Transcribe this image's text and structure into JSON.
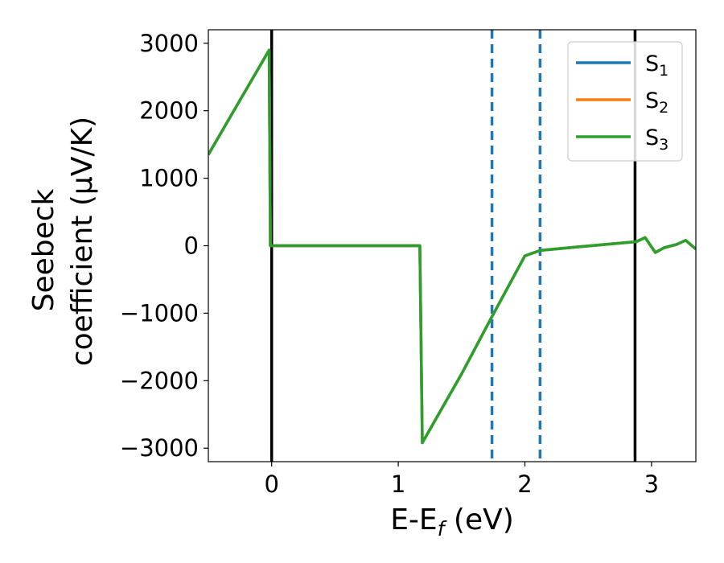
{
  "chart_data": {
    "type": "line",
    "xlabel": "E-E",
    "xlabel_sub": "f",
    "xlabel_unit": " (eV)",
    "ylabel_line1": "Seebeck",
    "ylabel_line2": "coefficient  (μV/K)",
    "xlim": [
      -0.5,
      3.35
    ],
    "ylim": [
      -3200,
      3200
    ],
    "x_ticks": [
      0,
      1,
      2,
      3
    ],
    "x_tick_labels": [
      "0",
      "1",
      "2",
      "3"
    ],
    "y_ticks": [
      3000,
      2000,
      1000,
      0,
      -1000,
      -2000,
      -3000
    ],
    "y_tick_labels": [
      "3000",
      "2000",
      "1000",
      "0",
      "−1000",
      "−2000",
      "−3000"
    ],
    "legend": {
      "placement": "top-right",
      "entries": [
        {
          "base": "S",
          "sub": "1",
          "color": "#1f77b4"
        },
        {
          "base": "S",
          "sub": "2",
          "color": "#ff7f0e"
        },
        {
          "base": "S",
          "sub": "3",
          "color": "#2ca02c"
        }
      ]
    },
    "series": [
      {
        "name": "S1",
        "color": "#1f77b4",
        "x": [
          -0.5,
          -0.02,
          -0.01,
          1.17,
          1.19,
          1.5,
          1.74,
          2.0,
          2.12,
          2.4,
          2.7,
          2.88,
          2.95,
          3.03,
          3.1,
          3.2,
          3.27,
          3.35
        ],
        "y": [
          1350,
          2900,
          0,
          0,
          -2920,
          -1900,
          -1050,
          -150,
          -70,
          -20,
          30,
          60,
          120,
          -100,
          -30,
          20,
          80,
          -50
        ]
      },
      {
        "name": "S2",
        "color": "#ff7f0e",
        "x": [
          -0.5,
          -0.02,
          -0.01,
          1.17,
          1.19,
          1.5,
          1.74,
          2.0,
          2.12,
          2.4,
          2.7,
          2.88,
          2.95,
          3.03,
          3.1,
          3.2,
          3.27,
          3.35
        ],
        "y": [
          1350,
          2900,
          0,
          0,
          -2920,
          -1900,
          -1050,
          -150,
          -70,
          -20,
          30,
          60,
          120,
          -100,
          -30,
          20,
          80,
          -50
        ]
      },
      {
        "name": "S3",
        "color": "#2ca02c",
        "x": [
          -0.5,
          -0.02,
          -0.01,
          1.17,
          1.19,
          1.5,
          1.74,
          2.0,
          2.12,
          2.4,
          2.7,
          2.88,
          2.95,
          3.03,
          3.1,
          3.2,
          3.27,
          3.35
        ],
        "y": [
          1350,
          2900,
          0,
          0,
          -2920,
          -1900,
          -1050,
          -150,
          -70,
          -20,
          30,
          60,
          120,
          -100,
          -30,
          20,
          80,
          -50
        ]
      }
    ],
    "vlines_solid": [
      0,
      2.87
    ],
    "vlines_dashed": [
      1.74,
      2.12
    ],
    "solid_line_color": "#000000",
    "dashed_line_color": "#1f77b4",
    "grid": false
  }
}
